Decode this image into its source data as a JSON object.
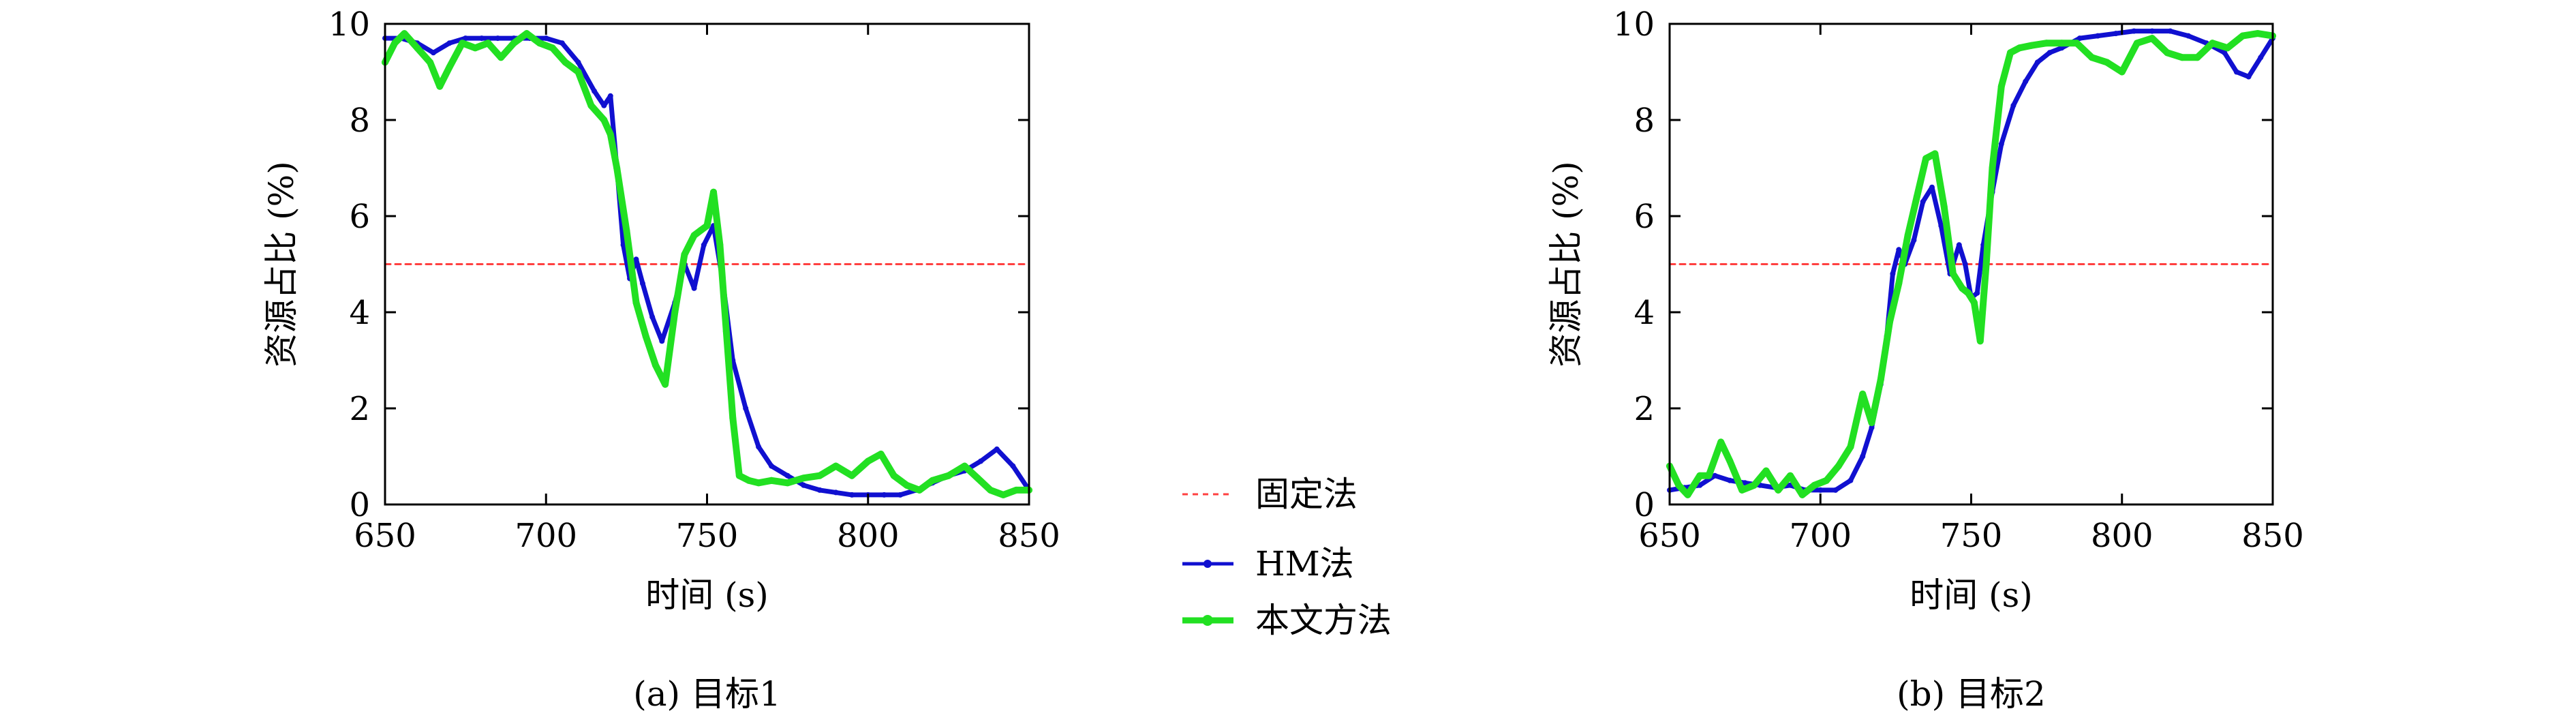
{
  "legend": {
    "fixed": "固定法",
    "hm": "HM法",
    "ours": "本文方法"
  },
  "colors": {
    "fixed": "#ff4040",
    "hm": "#1010d0",
    "ours": "#22e022"
  },
  "chart_data": [
    {
      "type": "line",
      "caption": "(a) 目标1",
      "xlabel": "时间 (s)",
      "ylabel": "资源占比 (%)",
      "xlim": [
        650,
        850
      ],
      "ylim": [
        0,
        10
      ],
      "xticks": [
        650,
        700,
        750,
        800,
        850
      ],
      "yticks": [
        0,
        2,
        4,
        6,
        8,
        10
      ],
      "series": [
        {
          "name": "固定法",
          "key": "fixed",
          "x": [
            650,
            850
          ],
          "y": [
            5,
            5
          ]
        },
        {
          "name": "HM法",
          "key": "hm",
          "x": [
            650,
            655,
            660,
            665,
            670,
            675,
            680,
            685,
            690,
            695,
            700,
            705,
            710,
            715,
            718,
            720,
            722,
            724,
            726,
            728,
            730,
            733,
            736,
            740,
            743,
            746,
            749,
            752,
            755,
            758,
            762,
            766,
            770,
            775,
            780,
            785,
            790,
            795,
            800,
            805,
            810,
            815,
            820,
            825,
            830,
            835,
            840,
            845,
            850
          ],
          "y": [
            9.7,
            9.7,
            9.6,
            9.4,
            9.6,
            9.7,
            9.7,
            9.7,
            9.7,
            9.7,
            9.7,
            9.6,
            9.2,
            8.6,
            8.3,
            8.5,
            7.0,
            5.4,
            4.7,
            5.1,
            4.6,
            3.9,
            3.4,
            4.2,
            5.0,
            4.5,
            5.4,
            5.8,
            4.6,
            3.0,
            2.0,
            1.2,
            0.8,
            0.6,
            0.4,
            0.3,
            0.25,
            0.2,
            0.2,
            0.2,
            0.2,
            0.3,
            0.45,
            0.6,
            0.7,
            0.9,
            1.15,
            0.8,
            0.3
          ]
        },
        {
          "name": "本文方法",
          "key": "ours",
          "x": [
            650,
            653,
            656,
            660,
            664,
            667,
            670,
            674,
            678,
            682,
            686,
            690,
            694,
            698,
            702,
            706,
            710,
            714,
            718,
            720,
            722,
            725,
            728,
            731,
            734,
            737,
            740,
            743,
            746,
            748,
            750,
            752,
            754,
            756,
            758,
            760,
            763,
            766,
            770,
            775,
            780,
            785,
            790,
            795,
            800,
            804,
            808,
            812,
            816,
            820,
            825,
            830,
            834,
            838,
            842,
            846,
            850
          ],
          "y": [
            9.2,
            9.6,
            9.8,
            9.5,
            9.2,
            8.7,
            9.1,
            9.6,
            9.5,
            9.6,
            9.3,
            9.6,
            9.8,
            9.6,
            9.5,
            9.2,
            9.0,
            8.3,
            8.0,
            7.7,
            7.0,
            5.7,
            4.2,
            3.5,
            2.9,
            2.5,
            4.0,
            5.2,
            5.6,
            5.7,
            5.8,
            6.5,
            5.4,
            3.6,
            1.8,
            0.6,
            0.5,
            0.45,
            0.5,
            0.45,
            0.55,
            0.6,
            0.8,
            0.6,
            0.9,
            1.05,
            0.6,
            0.4,
            0.3,
            0.5,
            0.6,
            0.8,
            0.55,
            0.3,
            0.2,
            0.3,
            0.3
          ]
        }
      ]
    },
    {
      "type": "line",
      "caption": "(b) 目标2",
      "xlabel": "时间 (s)",
      "ylabel": "资源占比 (%)",
      "xlim": [
        650,
        850
      ],
      "ylim": [
        0,
        10
      ],
      "xticks": [
        650,
        700,
        750,
        800,
        850
      ],
      "yticks": [
        0,
        2,
        4,
        6,
        8,
        10
      ],
      "series": [
        {
          "name": "固定法",
          "key": "fixed",
          "x": [
            650,
            850
          ],
          "y": [
            5,
            5
          ]
        },
        {
          "name": "HM法",
          "key": "hm",
          "x": [
            650,
            655,
            660,
            665,
            670,
            675,
            680,
            685,
            690,
            695,
            700,
            705,
            710,
            714,
            717,
            720,
            722,
            724,
            726,
            728,
            731,
            734,
            737,
            740,
            743,
            746,
            748,
            750,
            752,
            754,
            757,
            760,
            764,
            768,
            772,
            776,
            780,
            786,
            792,
            798,
            804,
            810,
            816,
            822,
            828,
            834,
            838,
            842,
            846,
            850
          ],
          "y": [
            0.3,
            0.35,
            0.4,
            0.6,
            0.5,
            0.45,
            0.4,
            0.35,
            0.4,
            0.3,
            0.3,
            0.3,
            0.5,
            1.0,
            1.6,
            2.5,
            3.5,
            4.8,
            5.3,
            5.0,
            5.5,
            6.3,
            6.6,
            5.8,
            4.8,
            5.4,
            5.0,
            4.3,
            4.4,
            5.4,
            6.5,
            7.5,
            8.3,
            8.8,
            9.2,
            9.4,
            9.5,
            9.7,
            9.75,
            9.8,
            9.85,
            9.85,
            9.85,
            9.75,
            9.6,
            9.4,
            9.0,
            8.9,
            9.3,
            9.7
          ]
        },
        {
          "name": "本文方法",
          "key": "ours",
          "x": [
            650,
            653,
            656,
            660,
            663,
            667,
            670,
            674,
            678,
            682,
            686,
            690,
            694,
            698,
            702,
            706,
            710,
            714,
            717,
            720,
            723,
            726,
            729,
            732,
            735,
            738,
            741,
            744,
            747,
            749,
            751,
            753,
            755,
            757,
            760,
            763,
            766,
            770,
            775,
            780,
            785,
            790,
            795,
            800,
            805,
            810,
            815,
            820,
            825,
            830,
            835,
            840,
            845,
            850
          ],
          "y": [
            0.8,
            0.4,
            0.2,
            0.6,
            0.6,
            1.3,
            0.9,
            0.3,
            0.4,
            0.7,
            0.3,
            0.6,
            0.2,
            0.4,
            0.5,
            0.8,
            1.2,
            2.3,
            1.7,
            2.6,
            3.8,
            4.6,
            5.6,
            6.4,
            7.2,
            7.3,
            6.2,
            4.8,
            4.5,
            4.4,
            4.2,
            3.4,
            5.0,
            7.0,
            8.7,
            9.4,
            9.5,
            9.55,
            9.6,
            9.6,
            9.6,
            9.3,
            9.2,
            9.0,
            9.6,
            9.7,
            9.4,
            9.3,
            9.3,
            9.6,
            9.5,
            9.75,
            9.8,
            9.75
          ]
        }
      ]
    }
  ]
}
